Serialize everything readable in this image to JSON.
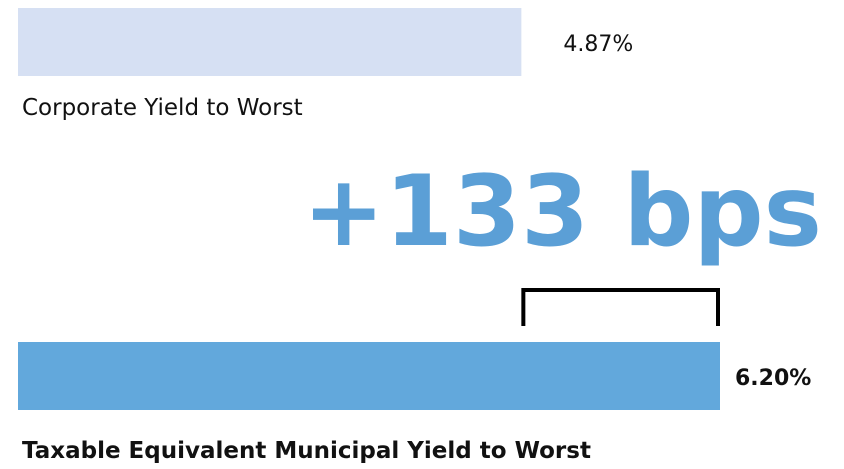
{
  "chart_data": {
    "type": "hbar",
    "categories": [
      "Corporate Yield to Worst",
      "Taxable Equivalent Municipal Yield to Worst"
    ],
    "values": [
      4.87,
      6.2
    ],
    "value_labels": [
      "4.87%",
      "6.20%"
    ],
    "colors": [
      "#d6e0f3",
      "#62a8dc"
    ],
    "xlim": [
      1.5,
      6.2
    ],
    "annotation": "+133 bps"
  }
}
